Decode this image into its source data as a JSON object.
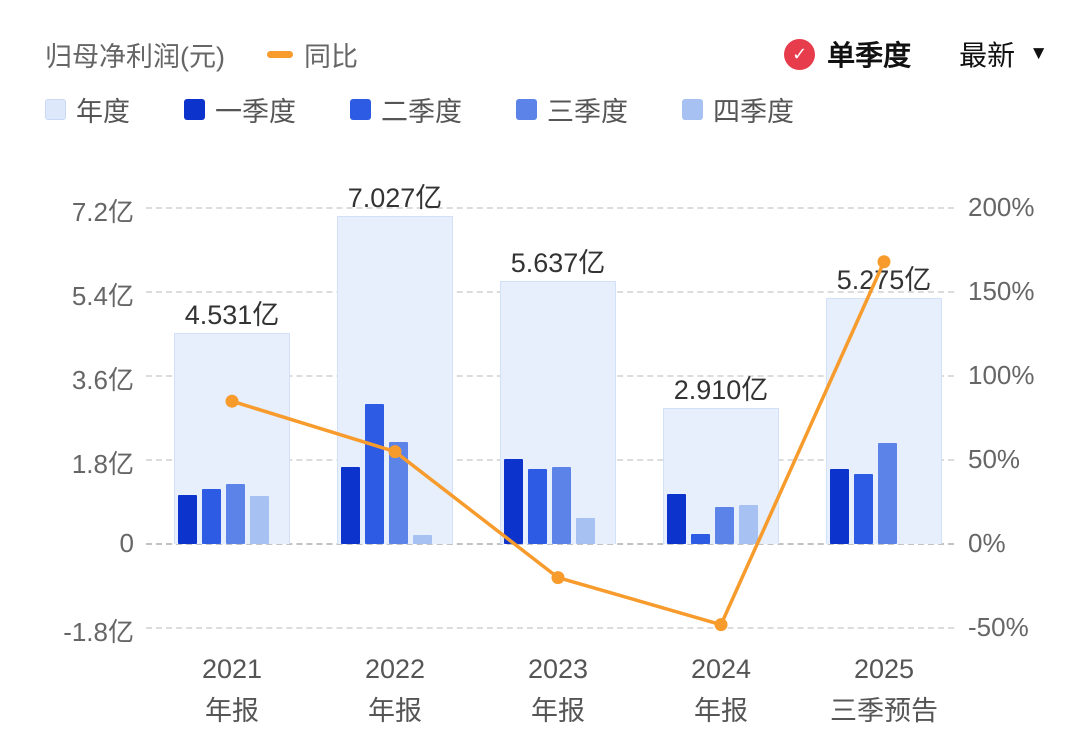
{
  "header": {
    "title": "归母净利润(元)",
    "line_legend": "同比",
    "mode_badge": "单季度",
    "latest_label": "最新"
  },
  "legend": [
    {
      "label": "年度",
      "color": "#dde8fb",
      "border": "#c9d9f5"
    },
    {
      "label": "一季度",
      "color": "#0d33cd"
    },
    {
      "label": "二季度",
      "color": "#2d5be3"
    },
    {
      "label": "三季度",
      "color": "#5c84e8"
    },
    {
      "label": "四季度",
      "color": "#a6c1f2"
    }
  ],
  "colors": {
    "annual_fill": "#e7eefc",
    "annual_border": "#d3e1f8",
    "line": "#f79b2c",
    "badge": "#e63c4b"
  },
  "chart_data": {
    "type": "bar",
    "title": "归母净利润(元)",
    "legend_position": "top",
    "grid": "dashed",
    "categories": [
      {
        "line1": "2021",
        "line2": "年报"
      },
      {
        "line1": "2022",
        "line2": "年报"
      },
      {
        "line1": "2023",
        "line2": "年报"
      },
      {
        "line1": "2024",
        "line2": "年报"
      },
      {
        "line1": "2025",
        "line2": "三季预告"
      }
    ],
    "annual": {
      "name": "年度",
      "values": [
        4.531,
        7.027,
        5.637,
        2.91,
        5.275
      ],
      "labels": [
        "4.531亿",
        "7.027亿",
        "5.637亿",
        "2.910亿",
        "5.275亿"
      ]
    },
    "quarters": {
      "series": [
        {
          "name": "一季度",
          "values": [
            1.05,
            1.65,
            1.82,
            1.07,
            1.6
          ]
        },
        {
          "name": "二季度",
          "values": [
            1.18,
            3.0,
            1.6,
            0.22,
            1.5
          ]
        },
        {
          "name": "三季度",
          "values": [
            1.28,
            2.18,
            1.66,
            0.79,
            2.17
          ]
        },
        {
          "name": "四季度",
          "values": [
            1.02,
            0.2,
            0.56,
            0.83,
            null
          ]
        }
      ],
      "unit": "亿"
    },
    "yoy": {
      "name": "同比",
      "values_pct": [
        85,
        55,
        -20,
        -48,
        168
      ]
    },
    "left_axis": {
      "ticks": [
        "7.2亿",
        "5.4亿",
        "3.6亿",
        "1.8亿",
        "0",
        "-1.8亿"
      ],
      "values": [
        7.2,
        5.4,
        3.6,
        1.8,
        0,
        -1.8
      ],
      "range": [
        -1.8,
        7.2
      ]
    },
    "right_axis": {
      "ticks": [
        "200%",
        "150%",
        "100%",
        "50%",
        "0%",
        "-50%"
      ],
      "values": [
        200,
        150,
        100,
        50,
        0,
        -50
      ],
      "range": [
        -50,
        200
      ]
    }
  }
}
